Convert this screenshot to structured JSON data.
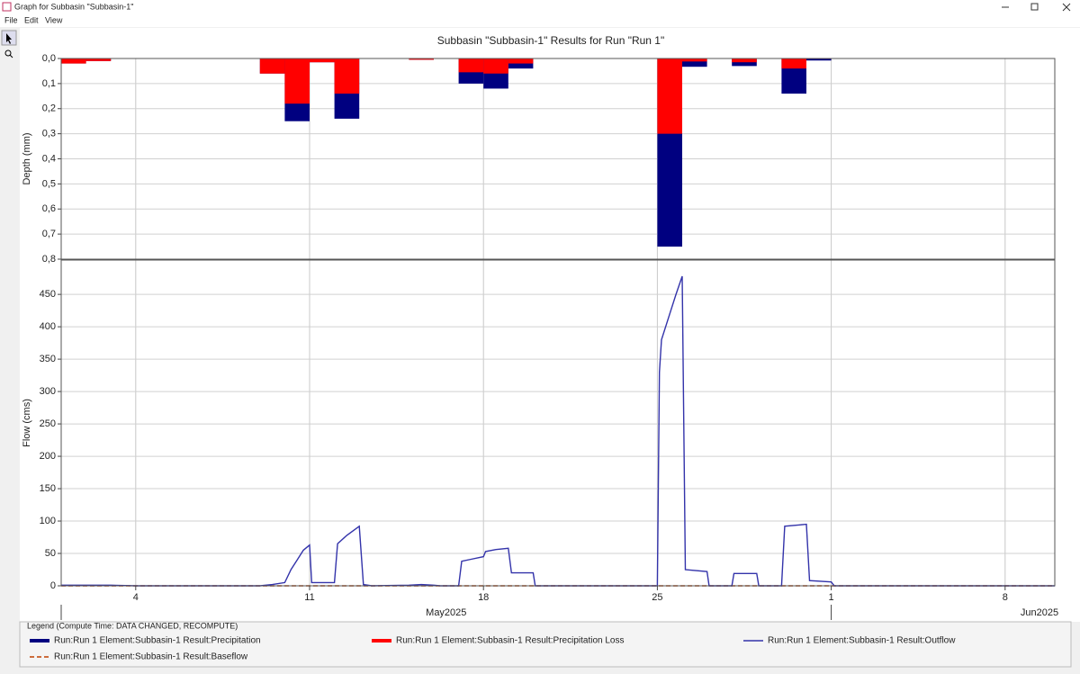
{
  "window": {
    "title": "Graph for Subbasin \"Subbasin-1\"",
    "menu": [
      "File",
      "Edit",
      "View"
    ]
  },
  "figure_title": "Subbasin \"Subbasin-1\" Results for Run \"Run 1\"",
  "legend_title": "Legend (Compute Time: DATA CHANGED, RECOMPUTE)",
  "chart_data": [
    {
      "type": "bar",
      "y_label": "Depth (mm)",
      "y_inverted": true,
      "grid": true,
      "x": [
        "2025-05-01",
        "2025-05-02",
        "2025-05-09",
        "2025-05-10",
        "2025-05-11",
        "2025-05-12",
        "2025-05-15",
        "2025-05-17",
        "2025-05-18",
        "2025-05-19",
        "2025-05-25",
        "2025-05-26",
        "2025-05-28",
        "2025-05-30",
        "2025-05-31"
      ],
      "series": [
        {
          "name": "Run:Run 1 Element:Subbasin-1 Result:Precipitation",
          "color": "#000080",
          "values": [
            0.02,
            0.01,
            0.06,
            0.25,
            0.015,
            0.24,
            0.005,
            0.1,
            0.12,
            0.04,
            0.75,
            0.033,
            0.03,
            0.14,
            0.008
          ]
        },
        {
          "name": "Run:Run 1 Element:Subbasin-1 Result:Precipitation Loss",
          "color": "#ff0000",
          "values": [
            0.02,
            0.01,
            0.06,
            0.18,
            0.015,
            0.14,
            0.005,
            0.055,
            0.06,
            0.02,
            0.3,
            0.012,
            0.015,
            0.04,
            0.002
          ]
        }
      ],
      "ylim": [
        0,
        0.8
      ],
      "yticks": [
        {
          "value": 0,
          "label": "0,0"
        },
        {
          "value": 0.1,
          "label": "0,1"
        },
        {
          "value": 0.2,
          "label": "0,2"
        },
        {
          "value": 0.3,
          "label": "0,3"
        },
        {
          "value": 0.4,
          "label": "0,4"
        },
        {
          "value": 0.5,
          "label": "0,5"
        },
        {
          "value": 0.6,
          "label": "0,6"
        },
        {
          "value": 0.7,
          "label": "0,7"
        },
        {
          "value": 0.8,
          "label": "0,8"
        }
      ]
    },
    {
      "type": "line",
      "y_label": "Flow (cms)",
      "grid": true,
      "x": [
        "2025-05-01T00:00",
        "2025-05-03T00:00",
        "2025-05-04T00:00",
        "2025-05-09T00:00",
        "2025-05-09T12:00",
        "2025-05-10T00:00",
        "2025-05-10T06:00",
        "2025-05-10T12:00",
        "2025-05-10T18:00",
        "2025-05-11T00:00",
        "2025-05-11T02:00",
        "2025-05-12T00:00",
        "2025-05-12T03:00",
        "2025-05-12T12:00",
        "2025-05-13T00:00",
        "2025-05-13T04:00",
        "2025-05-13T12:00",
        "2025-05-15T00:00",
        "2025-05-15T12:00",
        "2025-05-16T00:00",
        "2025-05-16T06:00",
        "2025-05-17T00:00",
        "2025-05-17T03:00",
        "2025-05-17T12:00",
        "2025-05-18T00:00",
        "2025-05-18T02:00",
        "2025-05-18T12:00",
        "2025-05-19T00:00",
        "2025-05-19T03:00",
        "2025-05-20T00:00",
        "2025-05-20T02:00",
        "2025-05-25T00:00",
        "2025-05-25T02:00",
        "2025-05-25T04:00",
        "2025-05-25T12:00",
        "2025-05-25T18:00",
        "2025-05-26T00:00",
        "2025-05-26T03:00",
        "2025-05-27T00:00",
        "2025-05-27T02:00",
        "2025-05-28T00:00",
        "2025-05-28T02:00",
        "2025-05-29T00:00",
        "2025-05-29T02:00",
        "2025-05-30T00:00",
        "2025-05-30T03:00",
        "2025-05-31T00:00",
        "2025-05-31T03:00",
        "2025-06-01T00:00",
        "2025-06-01T03:00",
        "2025-06-10T00:00"
      ],
      "series": [
        {
          "name": "Run:Run 1 Element:Subbasin-1 Result:Outflow",
          "color": "#3333aa",
          "values": [
            1,
            1,
            0,
            0,
            2,
            5,
            25,
            40,
            55,
            63,
            5,
            5,
            65,
            78,
            92,
            2,
            0,
            1,
            2,
            1,
            0,
            0,
            38,
            41,
            45,
            53,
            56,
            58,
            20,
            20,
            0,
            0,
            330,
            380,
            420,
            450,
            478,
            25,
            22,
            0,
            0,
            19,
            19,
            0,
            0,
            92,
            95,
            8,
            6,
            0,
            0
          ]
        },
        {
          "name": "Run:Run 1 Element:Subbasin-1 Result:Baseflow",
          "color": "#c04000",
          "dashed": true,
          "values": [
            0,
            0,
            0,
            0,
            0,
            0,
            0,
            0,
            0,
            0,
            0,
            0,
            0,
            0,
            0,
            0,
            0,
            0,
            0,
            0,
            0,
            0,
            0,
            0,
            0,
            0,
            0,
            0,
            0,
            0,
            0,
            0,
            0,
            0,
            0,
            0,
            0,
            0,
            0,
            0,
            0,
            0,
            0,
            0,
            0,
            0,
            0,
            0,
            0,
            0,
            0
          ]
        }
      ],
      "xlim": [
        "2025-05-01T00:00",
        "2025-06-10T00:00"
      ],
      "xticks": [
        {
          "value": "2025-05-04T00:00",
          "label": "4"
        },
        {
          "value": "2025-05-11T00:00",
          "label": "11"
        },
        {
          "value": "2025-05-18T00:00",
          "label": "18"
        },
        {
          "value": "2025-05-25T00:00",
          "label": "25"
        },
        {
          "value": "2025-06-01T00:00",
          "label": "1"
        },
        {
          "value": "2025-06-08T00:00",
          "label": "8"
        }
      ],
      "month_labels": [
        {
          "value": "2025-05-01T00:00",
          "label": "May2025"
        },
        {
          "value": "2025-06-01T00:00",
          "label": "Jun2025"
        }
      ],
      "ylim": [
        0,
        503
      ],
      "yticks": [
        0,
        50,
        100,
        150,
        200,
        250,
        300,
        350,
        400,
        450
      ]
    }
  ]
}
